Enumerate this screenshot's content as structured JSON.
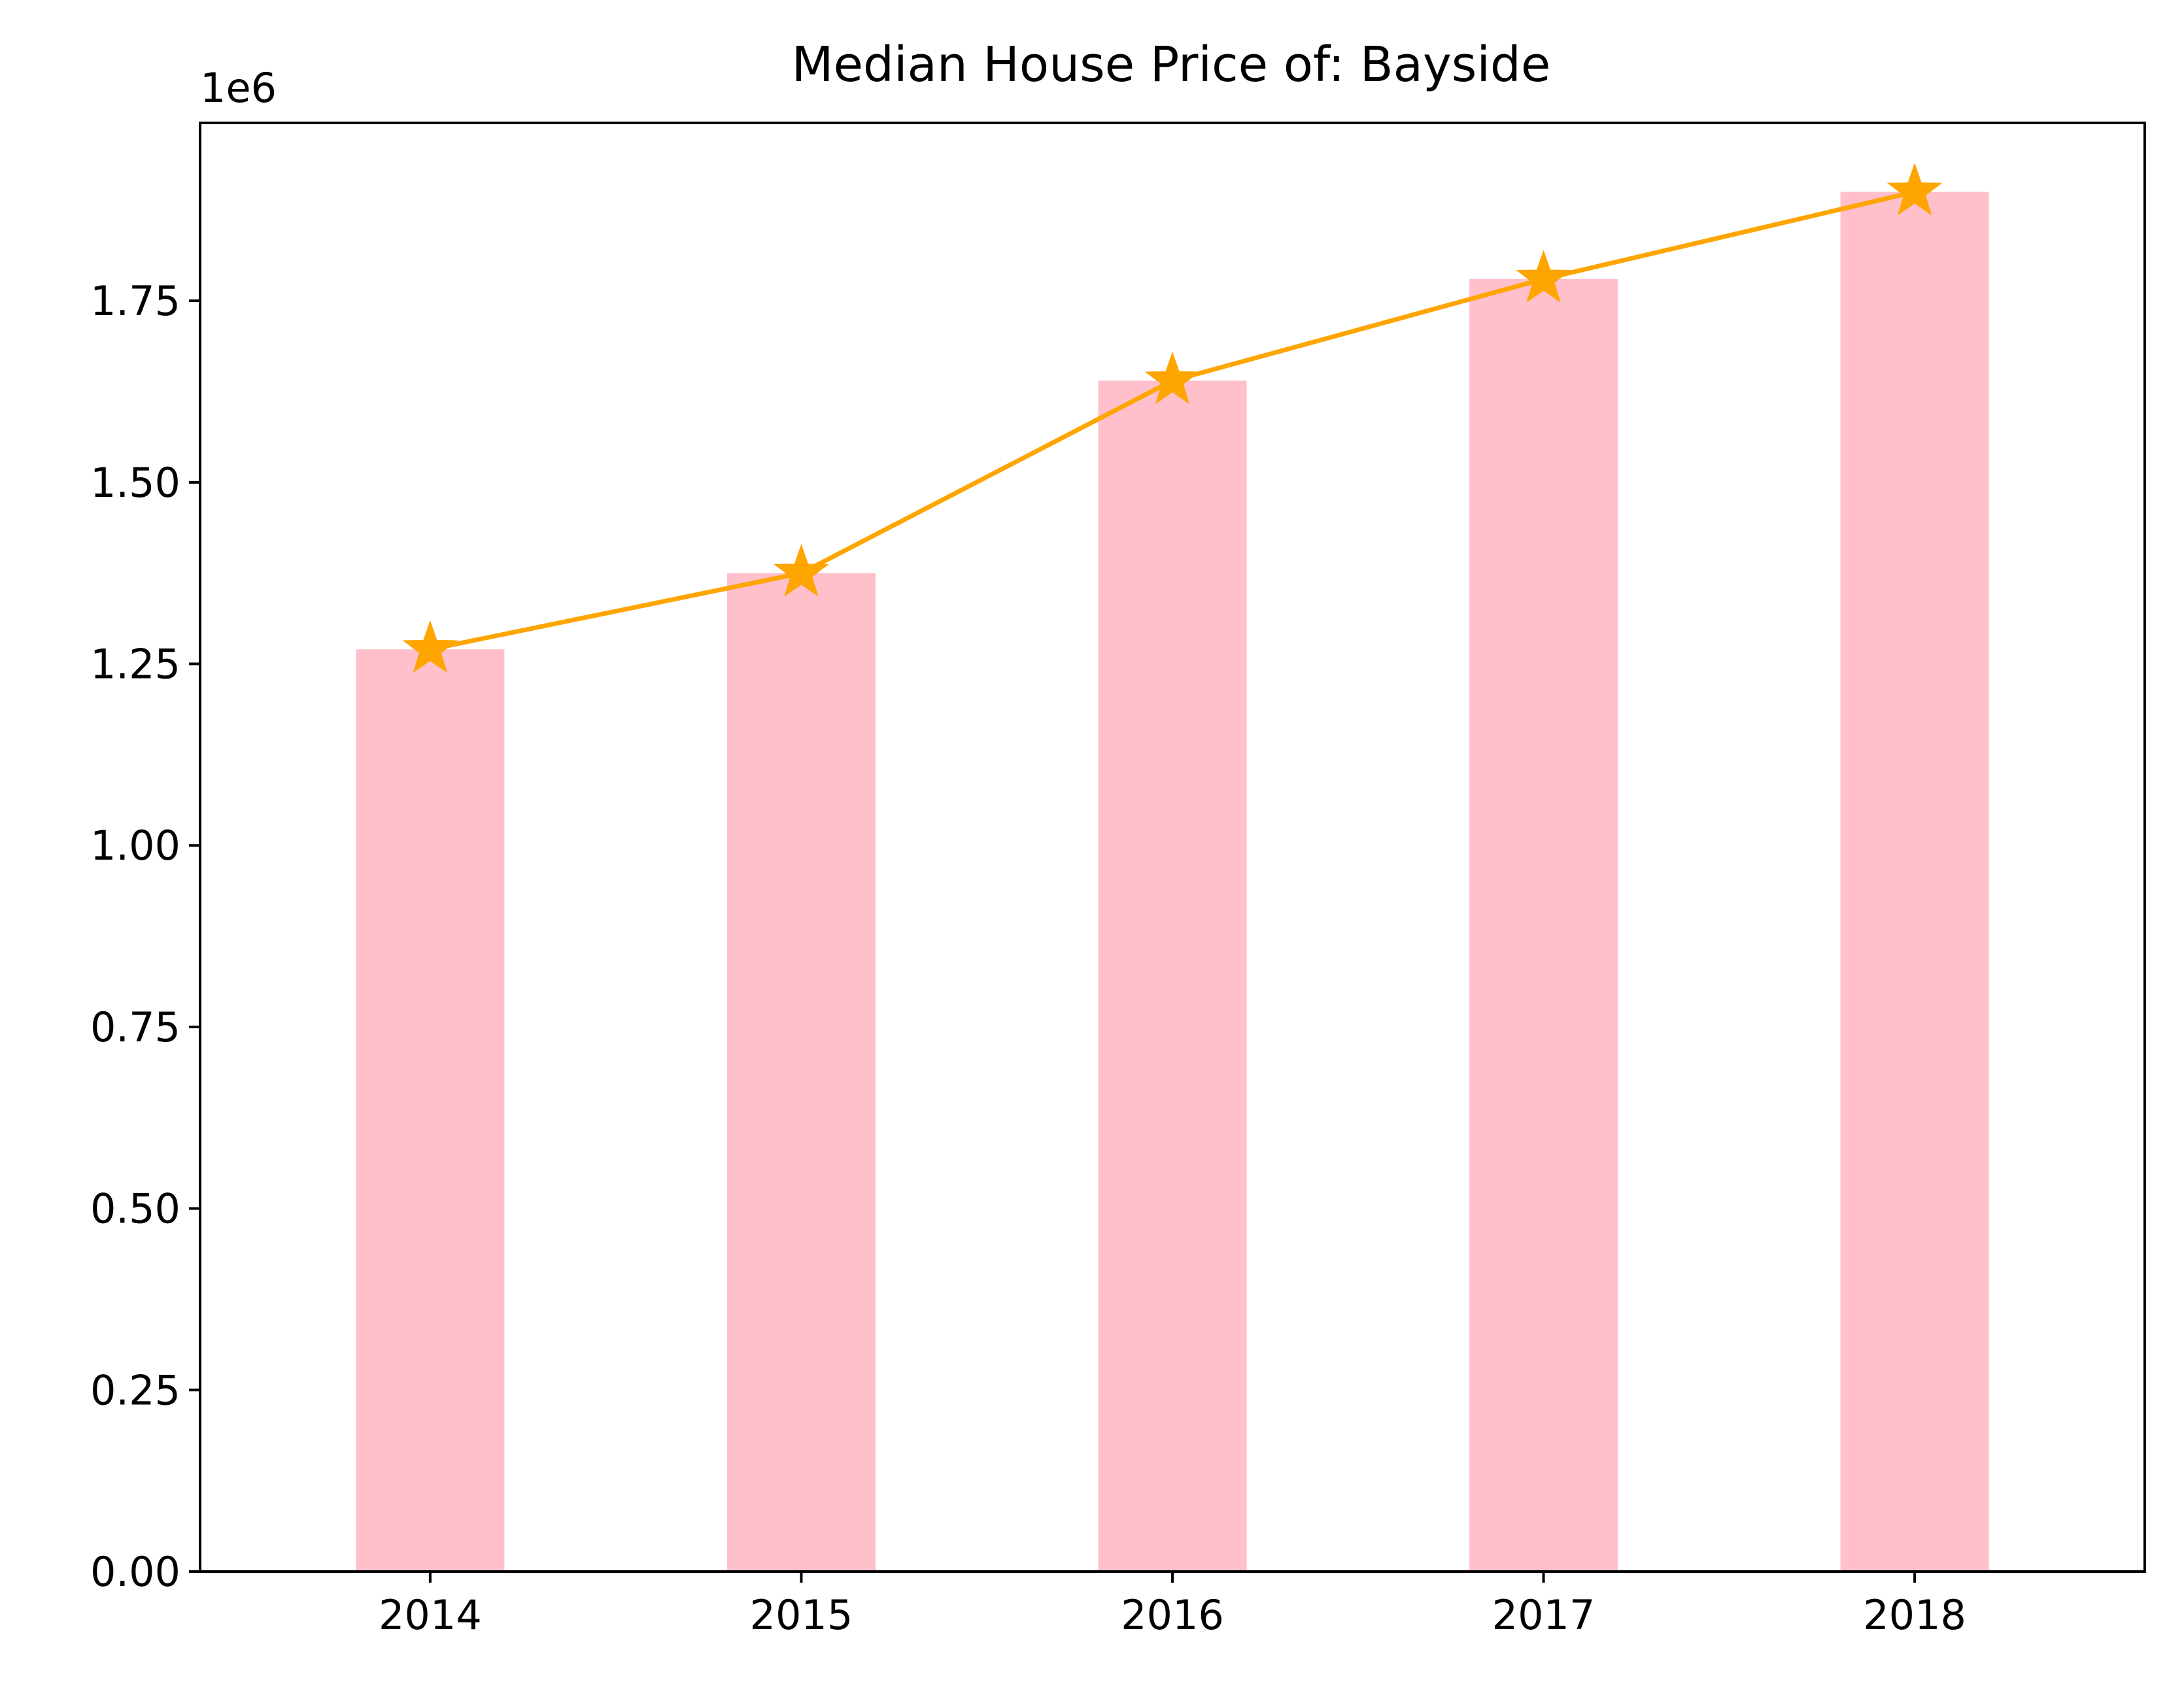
{
  "chart_data": {
    "type": "bar",
    "title": "Median House Price of: Bayside",
    "xlabel": "",
    "ylabel": "",
    "categories": [
      "2014",
      "2015",
      "2016",
      "2017",
      "2018"
    ],
    "values": [
      1270000,
      1375000,
      1640000,
      1780000,
      1900000
    ],
    "line_values": [
      1270000,
      1375000,
      1640000,
      1780000,
      1900000
    ],
    "line_marker": "star",
    "ylim": [
      0,
      1995000
    ],
    "y_ticks": [
      0,
      250000,
      500000,
      750000,
      1000000,
      1250000,
      1500000,
      1750000
    ],
    "y_tick_labels": [
      "0.00",
      "0.25",
      "0.50",
      "0.75",
      "1.00",
      "1.25",
      "1.50",
      "1.75"
    ],
    "y_offset_label": "1e6",
    "grid": false,
    "colors": {
      "bar": "#ffc0cb",
      "line": "#ffa500",
      "axis": "#000000"
    }
  }
}
